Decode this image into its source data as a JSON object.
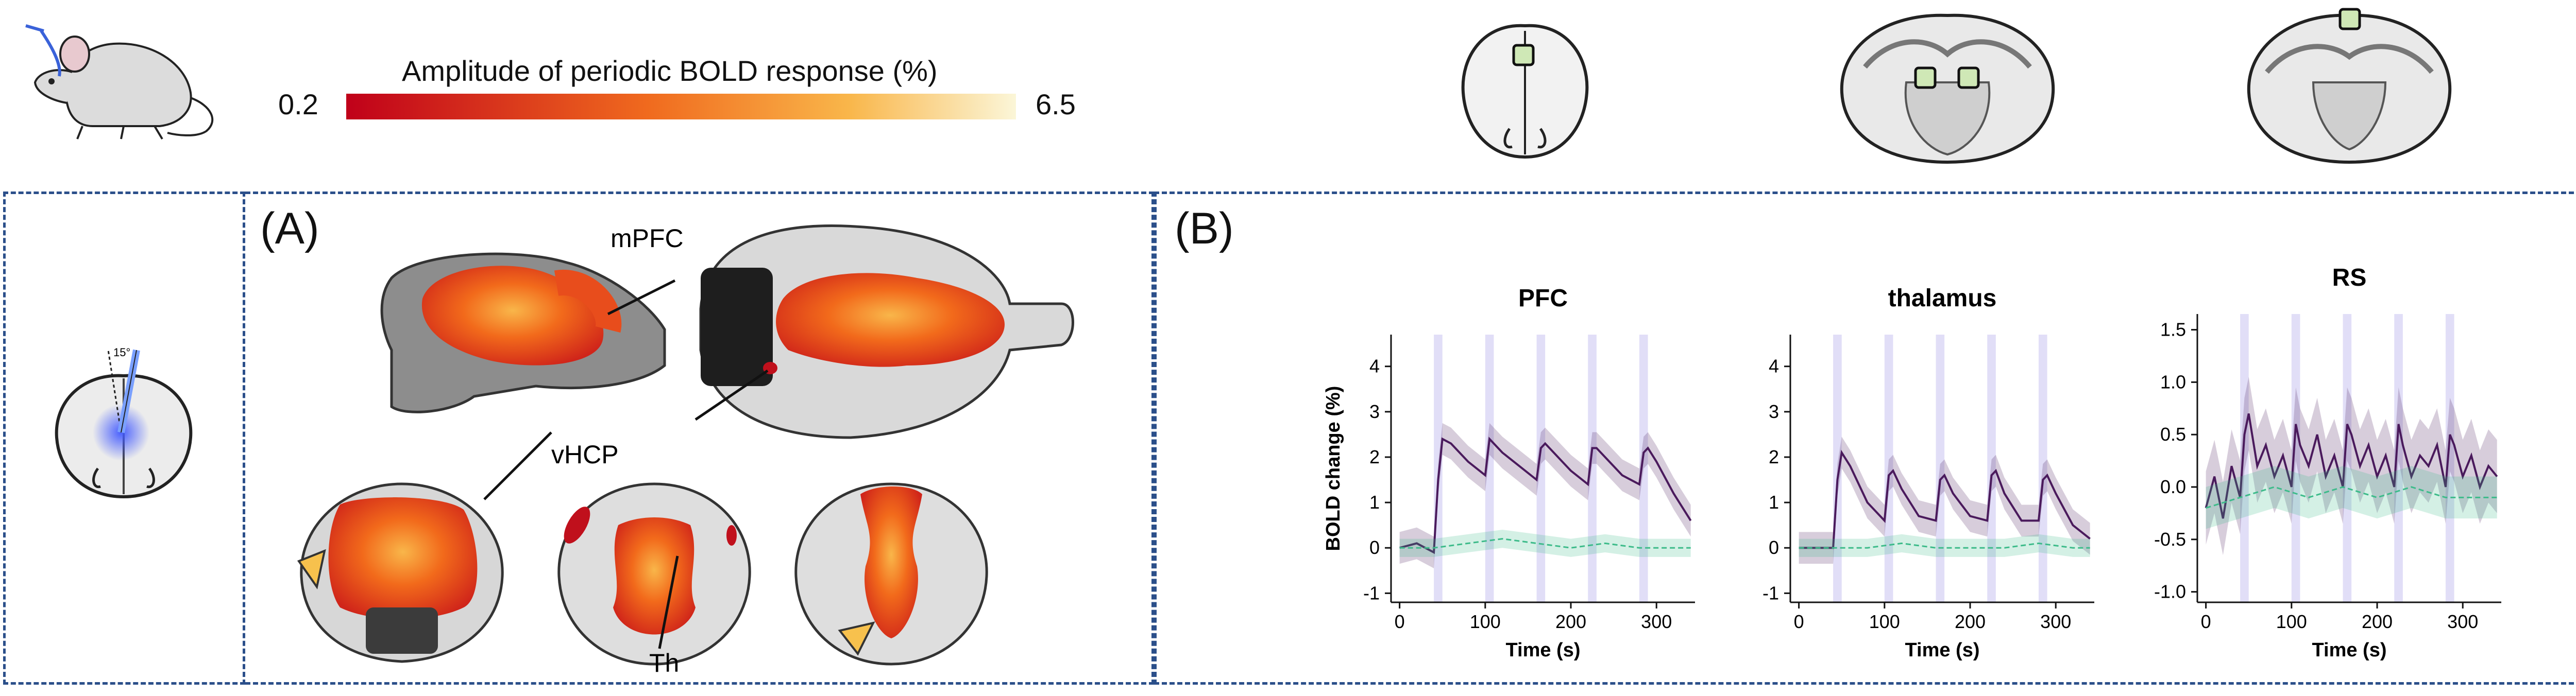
{
  "colorbar": {
    "title": "Amplitude of periodic BOLD response (%)",
    "min_label": "0.2",
    "max_label": "6.5",
    "color_low": "#c0001a",
    "color_mid": "#f06a1e",
    "color_high": "#fbf6d8"
  },
  "panels": {
    "a_label": "(A)",
    "b_label": "(B)",
    "border_color": "#2b4f8a"
  },
  "brain_labels": {
    "mpfc": "mPFC",
    "vhcp": "vHCP",
    "th": "Th"
  },
  "electrode_angle_label": "15°",
  "roi_color": "#cfe8b6",
  "chart_data": [
    {
      "type": "line",
      "title": "PFC",
      "xlabel": "Time (s)",
      "ylabel": "BOLD change (%)",
      "xlim": [
        -10,
        345
      ],
      "ylim": [
        -1.2,
        4.7
      ],
      "xticks": [
        "0",
        "100",
        "200",
        "300"
      ],
      "yticks": [
        "-1",
        "0",
        "1",
        "2",
        "3",
        "4"
      ],
      "stim_onsets": [
        40,
        100,
        160,
        220,
        280
      ],
      "series": [
        {
          "color": "#4a1a5c",
          "x": [
            0,
            20,
            40,
            45,
            50,
            60,
            80,
            100,
            105,
            110,
            120,
            140,
            160,
            165,
            170,
            180,
            200,
            220,
            225,
            230,
            240,
            260,
            280,
            285,
            290,
            300,
            320,
            340
          ],
          "y": [
            0,
            0.1,
            -0.1,
            1.5,
            2.4,
            2.3,
            1.9,
            1.6,
            2.4,
            2.3,
            2.1,
            1.8,
            1.5,
            2.2,
            2.3,
            2.1,
            1.7,
            1.4,
            2.2,
            2.2,
            2.0,
            1.6,
            1.4,
            2.1,
            2.2,
            1.9,
            1.2,
            0.6
          ]
        },
        {
          "color": "#3dbb8a",
          "x": [
            0,
            40,
            80,
            120,
            160,
            200,
            240,
            280,
            320,
            340
          ],
          "y": [
            0,
            0,
            0.1,
            0.2,
            0.1,
            0,
            0.1,
            0,
            0,
            0
          ]
        }
      ]
    },
    {
      "type": "line",
      "title": "thalamus",
      "xlabel": "Time (s)",
      "xlim": [
        -10,
        345
      ],
      "ylim": [
        -1.2,
        4.7
      ],
      "xticks": [
        "0",
        "100",
        "200",
        "300"
      ],
      "yticks": [
        "-1",
        "0",
        "1",
        "2",
        "3",
        "4"
      ],
      "stim_onsets": [
        40,
        100,
        160,
        220,
        280
      ],
      "series": [
        {
          "color": "#4a1a5c",
          "x": [
            0,
            20,
            40,
            45,
            50,
            60,
            80,
            100,
            105,
            110,
            120,
            140,
            160,
            165,
            170,
            180,
            200,
            220,
            225,
            230,
            240,
            260,
            280,
            285,
            290,
            300,
            320,
            340
          ],
          "y": [
            0,
            0,
            0,
            1.5,
            2.1,
            1.8,
            1.0,
            0.6,
            1.6,
            1.7,
            1.3,
            0.7,
            0.6,
            1.5,
            1.6,
            1.2,
            0.7,
            0.6,
            1.6,
            1.7,
            1.2,
            0.6,
            0.6,
            1.5,
            1.6,
            1.2,
            0.5,
            0.2
          ]
        },
        {
          "color": "#3dbb8a",
          "x": [
            0,
            40,
            80,
            120,
            160,
            200,
            240,
            280,
            320,
            340
          ],
          "y": [
            0,
            0,
            0,
            0.1,
            0,
            0,
            0,
            0.1,
            0,
            0
          ]
        }
      ]
    },
    {
      "type": "line",
      "title": "RS",
      "xlabel": "Time (s)",
      "xlim": [
        -10,
        345
      ],
      "ylim": [
        -1.1,
        1.65
      ],
      "xticks": [
        "0",
        "100",
        "200",
        "300"
      ],
      "yticks": [
        "-1.0",
        "-0.5",
        "0.0",
        "0.5",
        "1.0",
        "1.5"
      ],
      "stim_onsets": [
        40,
        100,
        160,
        220,
        280
      ],
      "series": [
        {
          "color": "#4a1a5c",
          "x": [
            0,
            10,
            20,
            30,
            40,
            45,
            50,
            60,
            70,
            80,
            90,
            100,
            105,
            110,
            120,
            130,
            140,
            150,
            160,
            165,
            170,
            180,
            190,
            200,
            210,
            220,
            225,
            230,
            240,
            250,
            260,
            270,
            280,
            285,
            290,
            300,
            310,
            320,
            330,
            340
          ],
          "y": [
            -0.2,
            0.1,
            -0.3,
            0.2,
            -0.1,
            0.5,
            0.7,
            0.2,
            0.4,
            0.1,
            0.3,
            0.0,
            0.6,
            0.4,
            0.2,
            0.5,
            0.1,
            0.3,
            0.0,
            0.6,
            0.5,
            0.2,
            0.4,
            0.1,
            0.3,
            0.0,
            0.6,
            0.4,
            0.1,
            0.3,
            0.2,
            0.4,
            0.0,
            0.5,
            0.4,
            0.1,
            0.3,
            0.0,
            0.2,
            0.1
          ]
        },
        {
          "color": "#3dbb8a",
          "x": [
            0,
            40,
            80,
            120,
            160,
            200,
            240,
            280,
            320,
            340
          ],
          "y": [
            -0.2,
            -0.1,
            0,
            -0.1,
            0,
            -0.1,
            0,
            -0.1,
            -0.1,
            -0.1
          ]
        }
      ]
    }
  ]
}
